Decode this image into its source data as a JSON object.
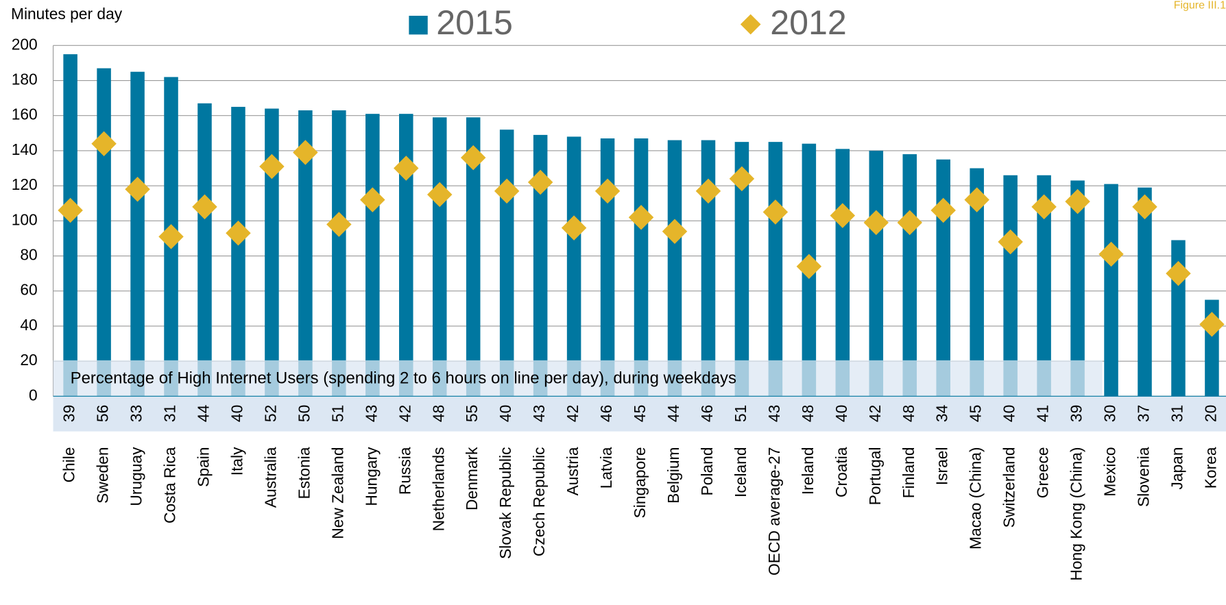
{
  "chart_data": {
    "type": "bar",
    "figure_label": "Figure III.1",
    "y_axis_label": "Minutes per day",
    "annotation": "Percentage of High Internet Users (spending 2 to 6 hours on line per day), during weekdays",
    "categories": [
      "Chile",
      "Sweden",
      "Uruguay",
      "Costa Rica",
      "Spain",
      "Italy",
      "Australia",
      "Estonia",
      "New Zealand",
      "Hungary",
      "Russia",
      "Netherlands",
      "Denmark",
      "Slovak Republic",
      "Czech Republic",
      "Austria",
      "Latvia",
      "Singapore",
      "Belgium",
      "Poland",
      "Iceland",
      "OECD average-27",
      "Ireland",
      "Croatia",
      "Portugal",
      "Finland",
      "Israel",
      "Macao (China)",
      "Switzerland",
      "Greece",
      "Hong Kong (China)",
      "Mexico",
      "Slovenia",
      "Japan",
      "Korea"
    ],
    "series": [
      {
        "name": "2015",
        "color": "#0077a0",
        "marker": "bar",
        "values": [
          195,
          187,
          185,
          182,
          167,
          165,
          164,
          163,
          163,
          161,
          161,
          159,
          159,
          152,
          149,
          148,
          147,
          147,
          146,
          146,
          145,
          145,
          144,
          141,
          140,
          138,
          135,
          130,
          126,
          126,
          123,
          121,
          119,
          89,
          55
        ]
      },
      {
        "name": "2012",
        "color": "#e5b52a",
        "marker": "diamond",
        "values": [
          106,
          144,
          118,
          91,
          108,
          93,
          131,
          139,
          98,
          112,
          130,
          115,
          136,
          117,
          122,
          96,
          117,
          102,
          94,
          117,
          124,
          105,
          74,
          103,
          99,
          99,
          106,
          112,
          88,
          108,
          111,
          81,
          108,
          70,
          41
        ]
      }
    ],
    "percent_high_users": [
      39,
      56,
      33,
      31,
      44,
      40,
      52,
      50,
      51,
      43,
      42,
      48,
      55,
      40,
      43,
      42,
      46,
      45,
      44,
      46,
      51,
      43,
      48,
      40,
      42,
      48,
      34,
      45,
      40,
      41,
      39,
      30,
      37,
      31,
      20
    ],
    "ylim": [
      0,
      200
    ],
    "yticks": [
      0,
      20,
      40,
      60,
      80,
      100,
      120,
      140,
      160,
      180,
      200
    ],
    "grid": true
  }
}
